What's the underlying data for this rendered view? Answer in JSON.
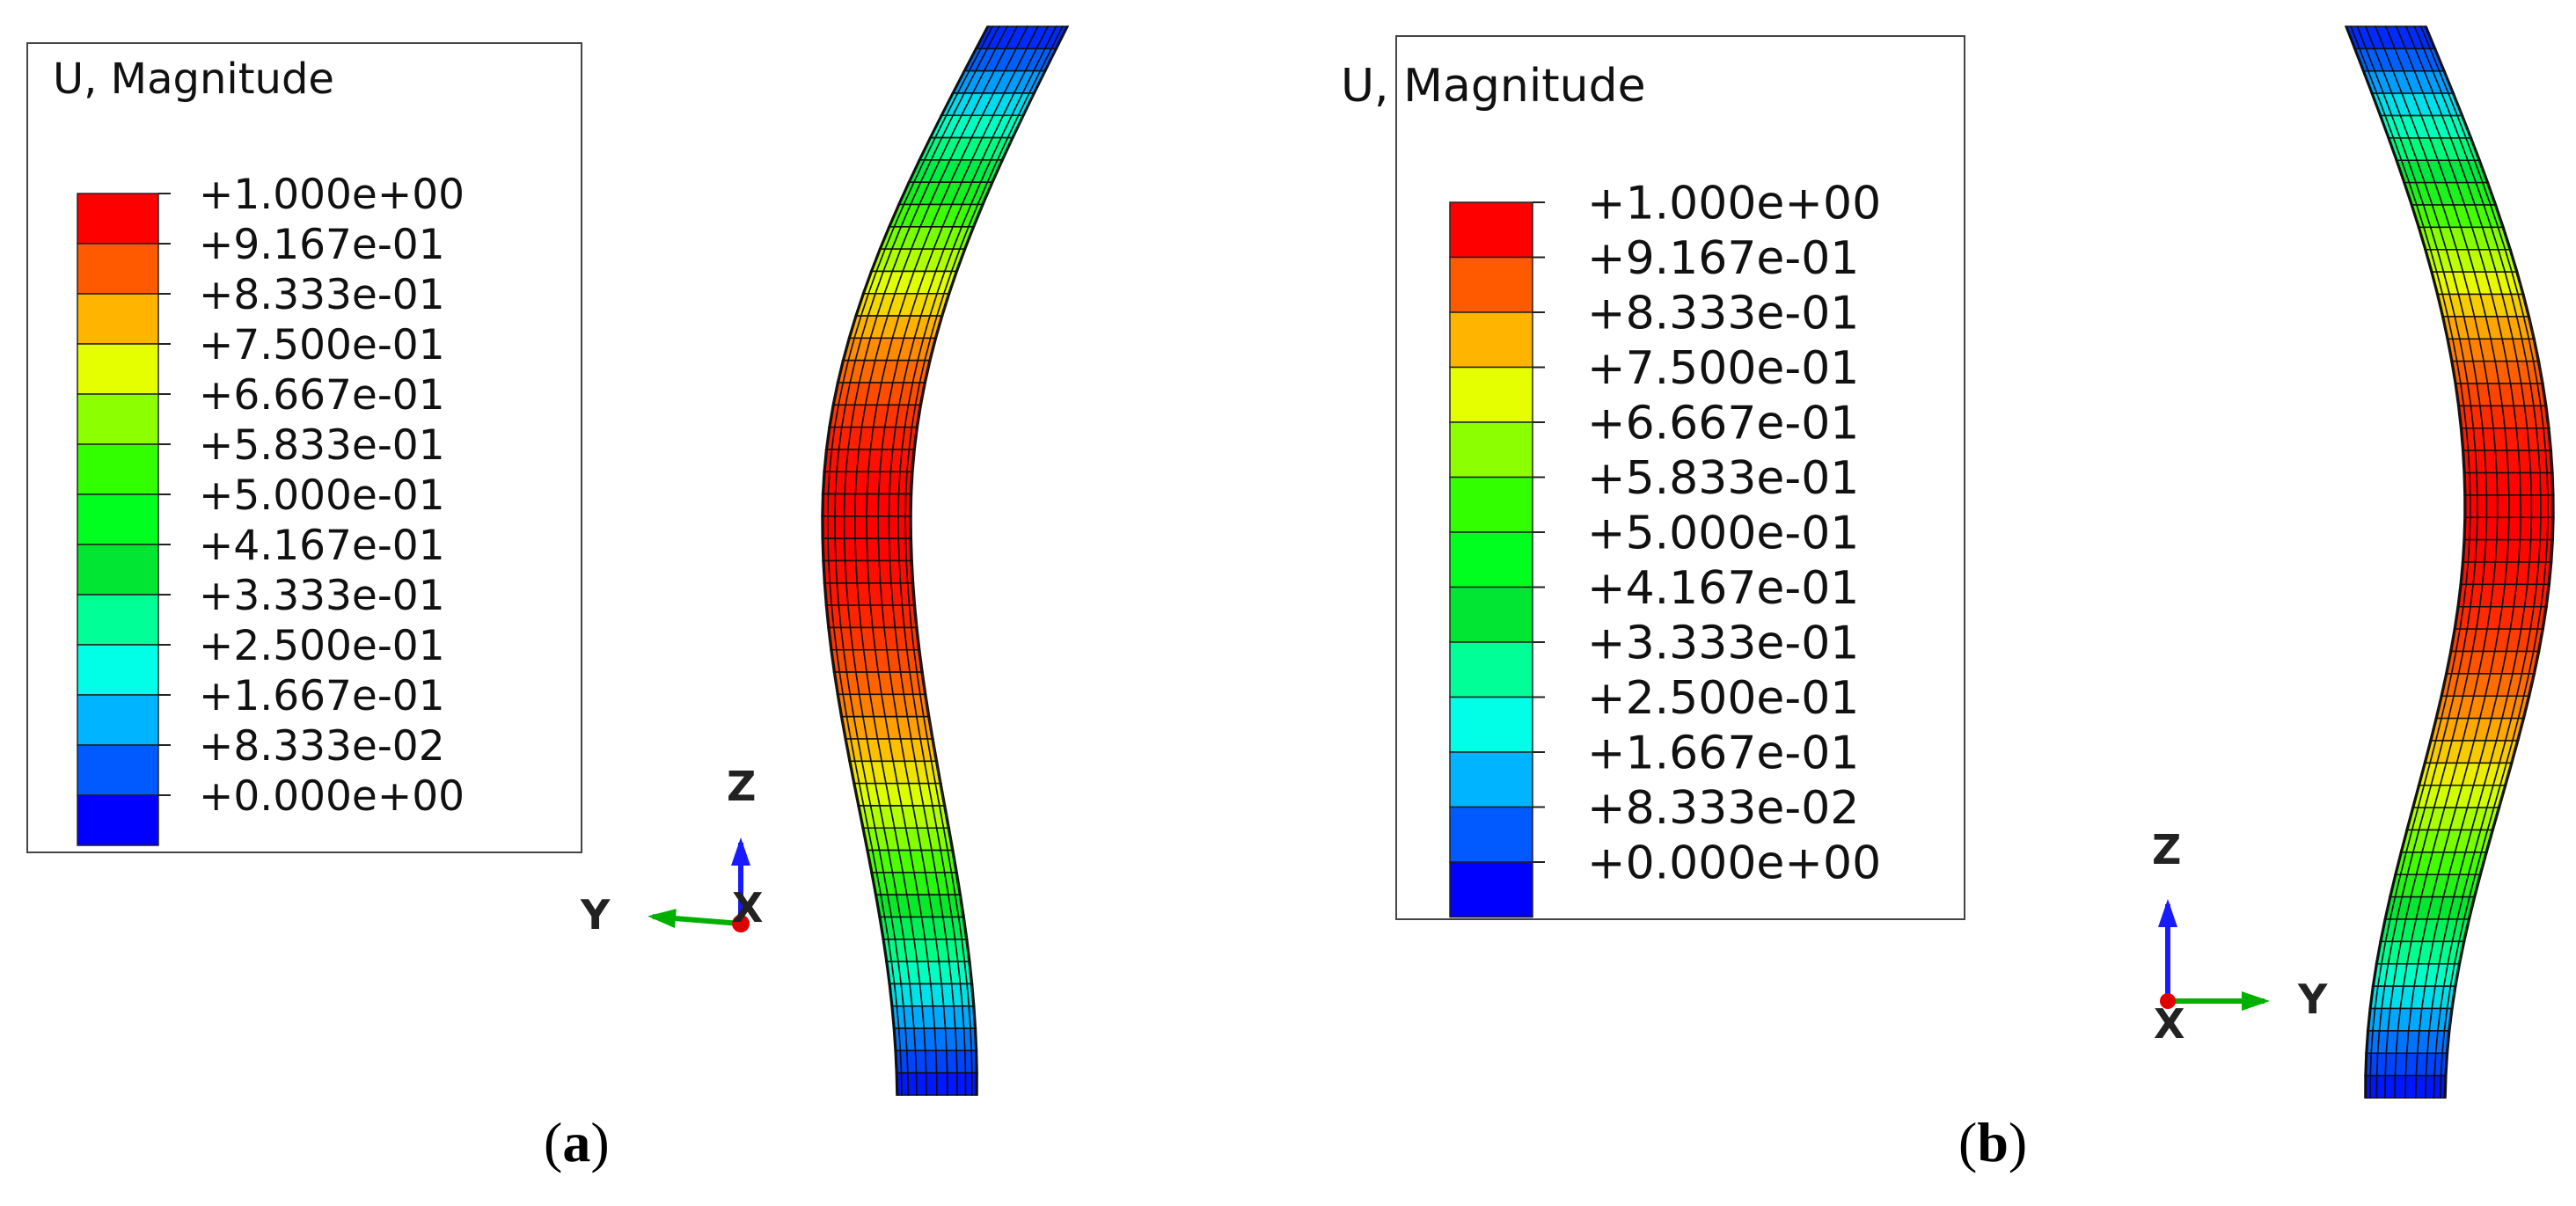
{
  "panels": [
    {
      "id": "a",
      "caption_letter": "a",
      "legend_title": "U, Magnitude",
      "axes_labels": {
        "up": "Z",
        "horizontal": "Y",
        "out": "X"
      },
      "axes_orientation": "Y pointing left"
    },
    {
      "id": "b",
      "caption_letter": "b",
      "legend_title": "U, Magnitude",
      "axes_labels": {
        "up": "Z",
        "horizontal": "Y",
        "out": "X"
      },
      "axes_orientation": "Y pointing right"
    }
  ],
  "legend": {
    "tick_values": [
      "+1.000e+00",
      "+9.167e-01",
      "+8.333e-01",
      "+7.500e-01",
      "+6.667e-01",
      "+5.833e-01",
      "+5.000e-01",
      "+4.167e-01",
      "+3.333e-01",
      "+2.500e-01",
      "+1.667e-01",
      "+8.333e-02",
      "+0.000e+00"
    ],
    "band_colors": [
      "#ff0000",
      "#ff5a00",
      "#ffb400",
      "#e6ff00",
      "#8cff00",
      "#32ff00",
      "#00ff1e",
      "#00e632",
      "#00ff96",
      "#00ffe6",
      "#00b4ff",
      "#005aff",
      "#0000ff"
    ]
  },
  "colors": {
    "axis_z": "#1a1aff",
    "axis_y": "#00b000",
    "axis_x": "#e00000",
    "mesh_line": "#111111"
  }
}
